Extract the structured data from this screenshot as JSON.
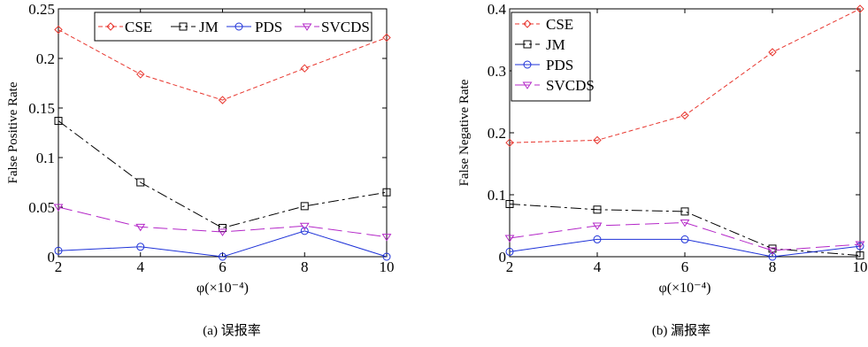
{
  "colors": {
    "CSE": "#e8362e",
    "JM": "#000000",
    "PDS": "#1e32d8",
    "SVCDS": "#b428c8"
  },
  "chart_data": [
    {
      "type": "line",
      "caption": "(a)  误报率",
      "xlabel": "φ(×10⁻⁴)",
      "ylabel": "False Positive Rate",
      "x": [
        2,
        4,
        6,
        8,
        10
      ],
      "xlim": [
        2,
        10
      ],
      "ylim": [
        0,
        0.25
      ],
      "xticks": [
        "2",
        "4",
        "6",
        "8",
        "10"
      ],
      "yticks": [
        {
          "v": 0,
          "label": "0"
        },
        {
          "v": 0.05,
          "label": "0.05"
        },
        {
          "v": 0.1,
          "label": "0.1"
        },
        {
          "v": 0.15,
          "label": "0.15"
        },
        {
          "v": 0.2,
          "label": "0.2"
        },
        {
          "v": 0.25,
          "label": "0.25"
        }
      ],
      "legend_placement": "top-horizontal",
      "grid": false,
      "series": [
        {
          "name": "CSE",
          "marker": "diamond",
          "dash": "dashed",
          "values": [
            0.229,
            0.184,
            0.158,
            0.19,
            0.221
          ]
        },
        {
          "name": "JM",
          "marker": "square",
          "dash": "dashdot",
          "values": [
            0.137,
            0.075,
            0.029,
            0.051,
            0.065
          ]
        },
        {
          "name": "PDS",
          "marker": "circle",
          "dash": "solid",
          "values": [
            0.006,
            0.01,
            0.0,
            0.026,
            0.0
          ]
        },
        {
          "name": "SVCDS",
          "marker": "triangle-down",
          "dash": "longdash",
          "values": [
            0.05,
            0.03,
            0.025,
            0.031,
            0.02
          ]
        }
      ]
    },
    {
      "type": "line",
      "caption": "(b)  漏报率",
      "xlabel": "φ(×10⁻⁴)",
      "ylabel": "False Negative Rate",
      "x": [
        2,
        4,
        6,
        8,
        10
      ],
      "xlim": [
        2,
        10
      ],
      "ylim": [
        0,
        0.4
      ],
      "xticks": [
        "2",
        "4",
        "6",
        "8",
        "10"
      ],
      "yticks": [
        {
          "v": 0,
          "label": "0"
        },
        {
          "v": 0.1,
          "label": "0.1"
        },
        {
          "v": 0.2,
          "label": "0.2"
        },
        {
          "v": 0.3,
          "label": "0.3"
        },
        {
          "v": 0.4,
          "label": "0.4"
        }
      ],
      "legend_placement": "top-left",
      "grid": false,
      "series": [
        {
          "name": "CSE",
          "marker": "diamond",
          "dash": "dashed",
          "values": [
            0.184,
            0.188,
            0.228,
            0.33,
            0.4
          ]
        },
        {
          "name": "JM",
          "marker": "square",
          "dash": "dashdot",
          "values": [
            0.085,
            0.076,
            0.073,
            0.013,
            0.002
          ]
        },
        {
          "name": "PDS",
          "marker": "circle",
          "dash": "solid",
          "values": [
            0.008,
            0.028,
            0.028,
            0.0,
            0.017
          ]
        },
        {
          "name": "SVCDS",
          "marker": "triangle-down",
          "dash": "longdash",
          "values": [
            0.03,
            0.05,
            0.055,
            0.01,
            0.02
          ]
        }
      ]
    }
  ]
}
